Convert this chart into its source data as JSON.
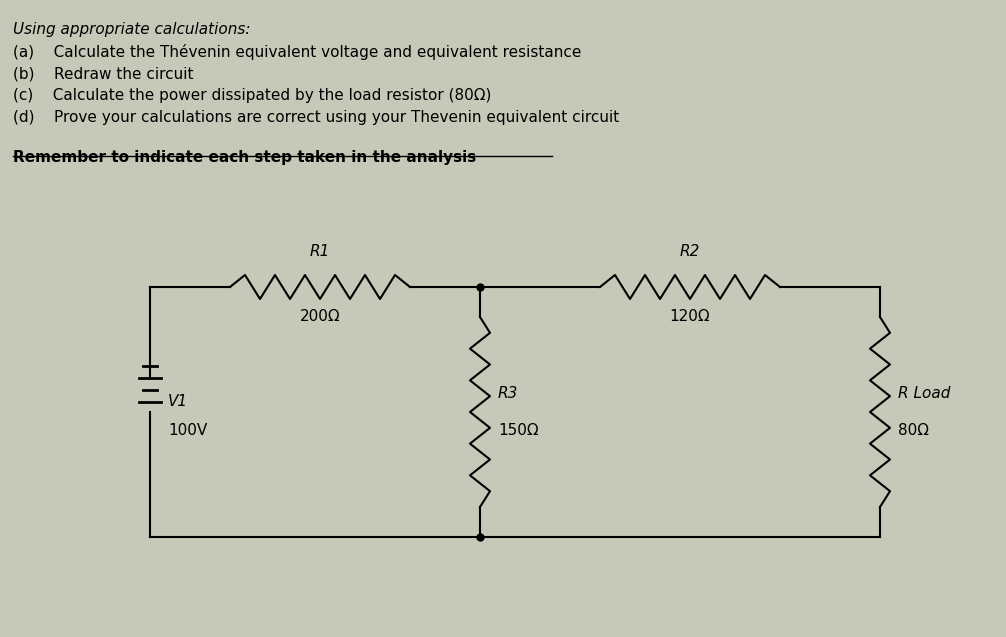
{
  "background_color": "#c8c8b8",
  "text_color": "#000000",
  "title_lines": [
    "Using appropriate calculations:",
    "(a)    Calculate the Thévenin equivalent voltage and equivalent resistance",
    "(b)    Redraw the circuit",
    "(c)    Calculate the power dissipated by the load resistor (80Ω)",
    "(d)    Prove your calculations are correct using your Thevenin equivalent circuit"
  ],
  "underline_text": "Remember to indicate each step taken in the analysis",
  "circuit": {
    "V1_label": "V1",
    "V1_value": "100V",
    "R1_label": "R1",
    "R1_value": "200Ω",
    "R2_label": "R2",
    "R2_value": "120Ω",
    "R3_label": "R3",
    "R3_value": "150Ω",
    "RL_label": "R Load",
    "RL_value": "80Ω"
  },
  "line_color": "#000000",
  "font_size_text": 11,
  "font_size_labels": 11,
  "xL": 1.5,
  "xM": 4.8,
  "xR": 8.8,
  "yT": 3.5,
  "yB": 1.0
}
